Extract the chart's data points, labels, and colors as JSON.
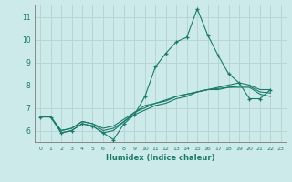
{
  "xlabel": "Humidex (Indice chaleur)",
  "bg_color": "#cceaea",
  "grid_color": "#b8d4d4",
  "line_color": "#1a7a6a",
  "xlim": [
    -0.5,
    23.5
  ],
  "ylim": [
    5.5,
    11.5
  ],
  "yticks": [
    6,
    7,
    8,
    9,
    10,
    11
  ],
  "xticks": [
    0,
    1,
    2,
    3,
    4,
    5,
    6,
    7,
    8,
    9,
    10,
    11,
    12,
    13,
    14,
    15,
    16,
    17,
    18,
    19,
    20,
    21,
    22,
    23
  ],
  "series": [
    [
      6.6,
      6.6,
      5.9,
      6.0,
      6.3,
      6.2,
      5.9,
      5.6,
      6.3,
      6.7,
      7.5,
      8.8,
      9.4,
      9.9,
      10.1,
      11.35,
      10.2,
      9.3,
      8.5,
      8.1,
      7.4,
      7.4,
      7.8,
      null
    ],
    [
      6.6,
      6.6,
      6.0,
      6.1,
      6.4,
      6.3,
      6.0,
      6.1,
      6.4,
      6.7,
      6.9,
      7.1,
      7.2,
      7.4,
      7.5,
      7.7,
      7.8,
      7.9,
      8.0,
      8.1,
      8.0,
      7.8,
      7.8,
      null
    ],
    [
      6.6,
      6.6,
      6.0,
      6.1,
      6.4,
      6.3,
      6.1,
      6.2,
      6.5,
      6.8,
      7.1,
      7.2,
      7.3,
      7.5,
      7.6,
      7.7,
      7.8,
      7.8,
      7.9,
      7.9,
      7.9,
      7.6,
      7.5,
      null
    ],
    [
      6.6,
      6.6,
      5.9,
      6.0,
      6.3,
      6.2,
      5.9,
      6.0,
      6.4,
      6.8,
      7.0,
      7.2,
      7.35,
      7.5,
      7.6,
      7.7,
      7.8,
      7.85,
      7.9,
      7.95,
      7.95,
      7.7,
      7.65,
      null
    ]
  ]
}
